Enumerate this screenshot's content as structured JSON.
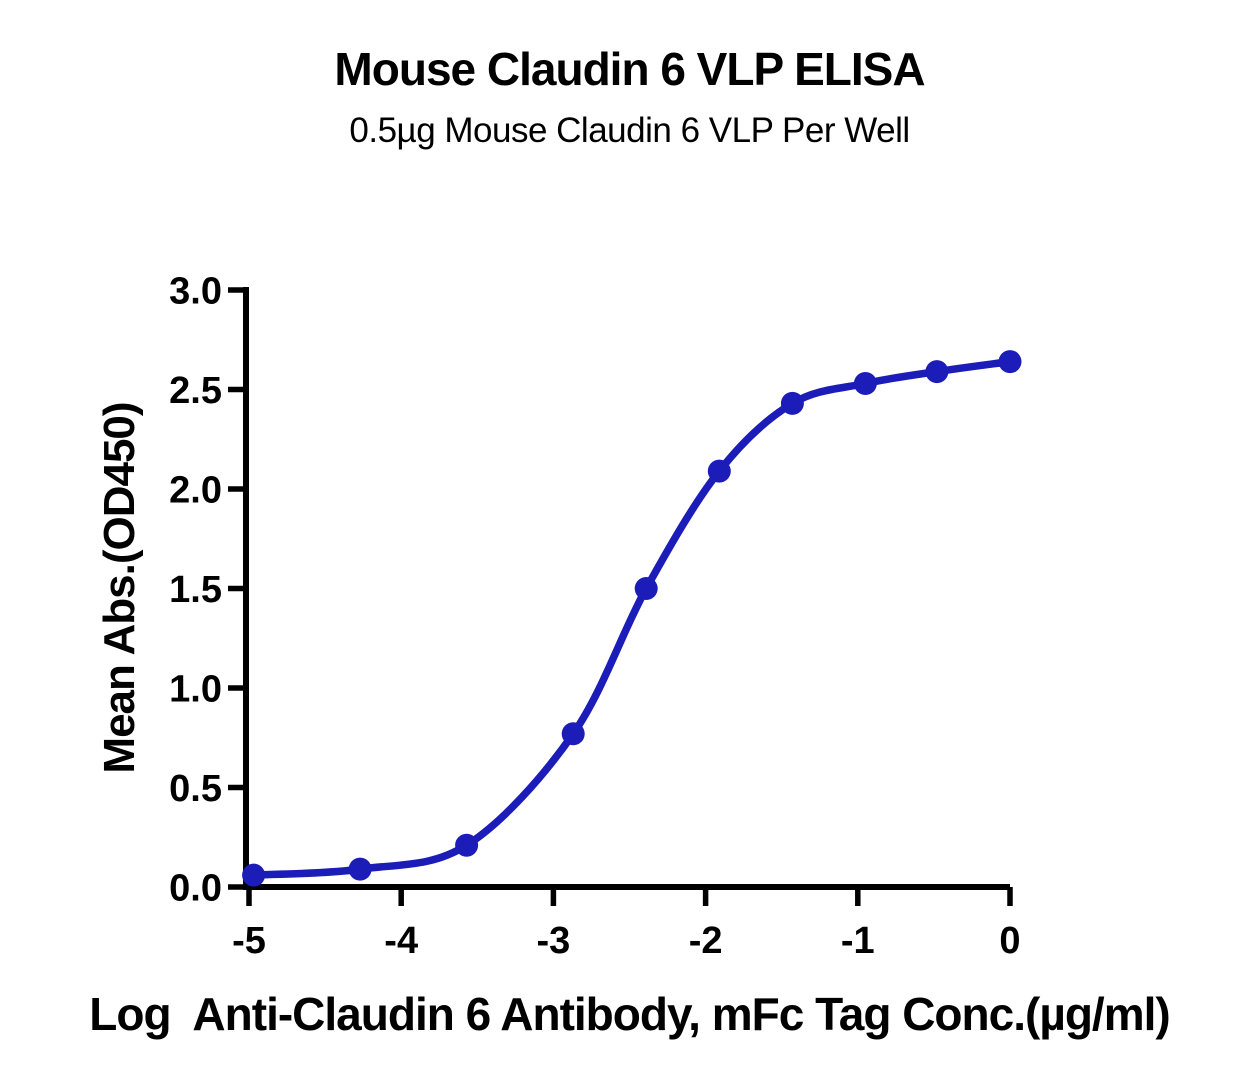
{
  "figure": {
    "title": "Mouse Claudin 6 VLP ELISA",
    "subtitle": "0.5µg Mouse Claudin 6 VLP Per Well"
  },
  "chart_data": {
    "type": "scatter",
    "curve": "sigmoidal-4PL-fit",
    "title": "Mouse Claudin 6 VLP ELISA",
    "subtitle": "0.5µg Mouse Claudin 6 VLP Per Well",
    "xlabel": "Log  Anti-Claudin 6 Antibody, mFc Tag Conc.(µg/ml)",
    "ylabel": "Mean Abs.(OD450)",
    "xlim": [
      -5,
      0
    ],
    "ylim": [
      0,
      3
    ],
    "x_ticks": [
      -5,
      -4,
      -3,
      -2,
      -1,
      0
    ],
    "x_tick_labels": [
      "-5",
      "-4",
      "-3",
      "-2",
      "-1",
      "0"
    ],
    "y_ticks": [
      0.0,
      0.5,
      1.0,
      1.5,
      2.0,
      2.5,
      3.0
    ],
    "y_tick_labels": [
      "0.0",
      "0.5",
      "1.0",
      "1.5",
      "2.0",
      "2.5",
      "3.0"
    ],
    "grid": false,
    "legend": "none",
    "axis_color": "#000000",
    "series": [
      {
        "name": "Anti-Claudin 6 Antibody, mFc Tag",
        "color": "#1C1CB8",
        "x": [
          -4.97,
          -4.27,
          -3.57,
          -2.87,
          -2.39,
          -1.91,
          -1.43,
          -0.95,
          -0.48,
          0.0
        ],
        "y": [
          0.06,
          0.09,
          0.21,
          0.77,
          1.5,
          2.09,
          2.43,
          2.53,
          2.59,
          2.64
        ]
      }
    ]
  }
}
